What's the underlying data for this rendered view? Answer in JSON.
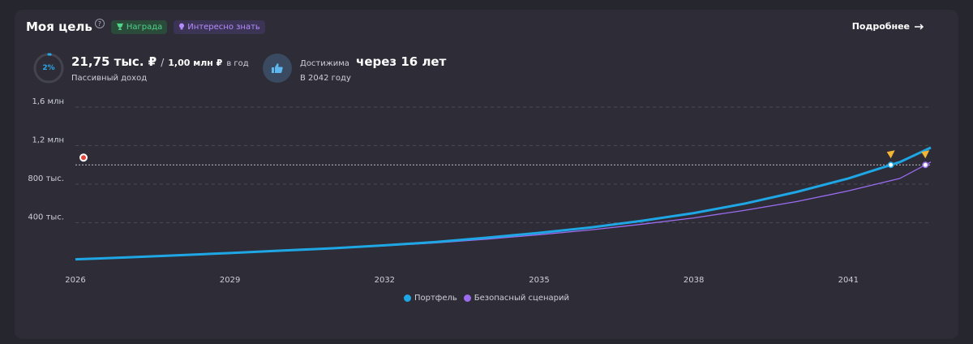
{
  "header": {
    "title": "Моя цель",
    "badge_award": "Награда",
    "badge_info": "Интересно знать",
    "more_link": "Подробнее"
  },
  "stats": {
    "progress_label": "2%",
    "progress_fraction": 0.02,
    "income_value": "21,75 тыс. ₽",
    "separator": "/",
    "goal_value": "1,00 млн ₽",
    "per_year": "в год",
    "income_label": "Пассивный доход",
    "achievable_label": "Достижима",
    "achievable_when": "через 16 лет",
    "achievable_year": "В 2042 году"
  },
  "colors": {
    "portfolio": "#1ea7e4",
    "safe": "#9b6cf0",
    "goal_line": "#bdbdc8",
    "grid": "#4a4a56"
  },
  "chart_data": {
    "type": "line",
    "x_ticks": [
      "2026",
      "2029",
      "2032",
      "2035",
      "2038",
      "2041"
    ],
    "y_ticks": [
      "400 тыс.",
      "800 тыс.",
      "1,2 млн",
      "1,6 млн"
    ],
    "y_tick_values": [
      400000,
      800000,
      1200000,
      1600000
    ],
    "xlim": [
      2026,
      2042.6
    ],
    "ylim": [
      0,
      1600000
    ],
    "goal_value": 1000000,
    "grid": true,
    "legend_position": "bottom-center",
    "series": [
      {
        "name": "Портфель",
        "x": [
          2026,
          2027,
          2028,
          2029,
          2030,
          2031,
          2032,
          2033,
          2034,
          2035,
          2036,
          2037,
          2038,
          2039,
          2040,
          2041,
          2042,
          2042.6
        ],
        "values": [
          20000,
          40000,
          62000,
          85000,
          110000,
          135000,
          165000,
          200000,
          245000,
          295000,
          350000,
          420000,
          500000,
          600000,
          720000,
          860000,
          1030000,
          1180000
        ]
      },
      {
        "name": "Безопасный сценарий",
        "x": [
          2026,
          2027,
          2028,
          2029,
          2030,
          2031,
          2032,
          2033,
          2034,
          2035,
          2036,
          2037,
          2038,
          2039,
          2040,
          2041,
          2042,
          2042.6
        ],
        "values": [
          20000,
          40000,
          62000,
          85000,
          110000,
          135000,
          160000,
          190000,
          230000,
          275000,
          325000,
          385000,
          450000,
          530000,
          620000,
          730000,
          860000,
          1030000
        ]
      }
    ]
  }
}
